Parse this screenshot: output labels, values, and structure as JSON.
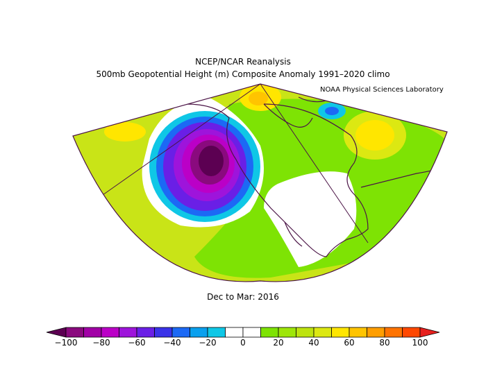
{
  "header": {
    "title": "NCEP/NCAR Reanalysis",
    "subtitle": "500mb Geopotential Height (m) Composite Anomaly 1991–2020 climo",
    "credit": "NOAA Physical Sciences Laboratory"
  },
  "map": {
    "season_label": "Dec to Mar: 2016",
    "projection": "conic sector",
    "coastline_color": "#4b1446",
    "features": [
      {
        "name": "negative-anomaly-center",
        "region": "Gulf of Alaska / NE Pacific",
        "value": -100
      },
      {
        "name": "positive-anomaly",
        "region": "North Atlantic",
        "value": 40
      },
      {
        "name": "positive-anomaly",
        "region": "Arctic (north of Alaska)",
        "value": 40
      }
    ]
  },
  "colorbar": {
    "min": -100,
    "max": 100,
    "step": 10,
    "tick_labels": [
      "−100",
      "−80",
      "−60",
      "−40",
      "−20",
      "0",
      "20",
      "40",
      "60",
      "80",
      "100"
    ],
    "colors": [
      "#8a0a7e",
      "#a100a6",
      "#bb00c7",
      "#9e14db",
      "#6a1fe6",
      "#3a32e8",
      "#1c69f5",
      "#0aa0ee",
      "#0fc7e6",
      "#ffffff",
      "#ffffff",
      "#7ee304",
      "#9ee60a",
      "#bde30f",
      "#dce812",
      "#ffe600",
      "#ffc400",
      "#ff9e00",
      "#ff7300",
      "#ff4800"
    ],
    "below_color": "#5c0052",
    "above_color": "#e6201e"
  }
}
